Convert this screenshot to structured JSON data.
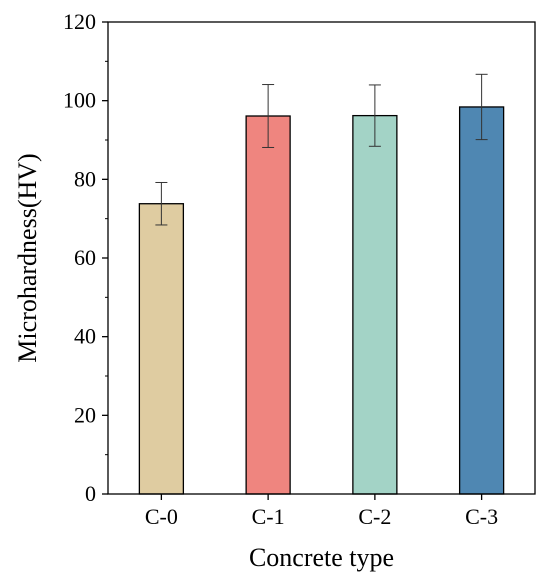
{
  "chart_data": {
    "type": "bar",
    "categories": [
      "C-0",
      "C-1",
      "C-2",
      "C-3"
    ],
    "values": [
      73.8,
      96.1,
      96.2,
      98.4
    ],
    "errors": [
      5.4,
      8.0,
      7.8,
      8.3
    ],
    "bar_colors": [
      "#dfcca1",
      "#ef857f",
      "#a3d3c6",
      "#4f87b2"
    ],
    "xlabel": "Concrete type",
    "ylabel": "Microhardness(HV)",
    "ylim": [
      0,
      120
    ],
    "yticks": [
      "0",
      "20",
      "40",
      "60",
      "80",
      "100",
      "120"
    ],
    "grid": false,
    "legend": "none"
  }
}
